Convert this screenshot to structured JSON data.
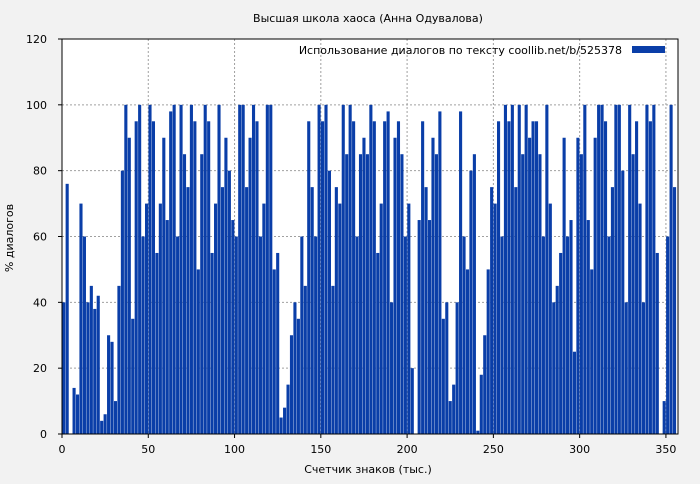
{
  "chart_data": {
    "type": "bar",
    "title": "Высшая школа хаоса (Анна Одувалова)",
    "xlabel": "Счетчик знаков (тыс.)",
    "ylabel": "% диалогов",
    "xlim": [
      0,
      357
    ],
    "ylim": [
      0,
      120
    ],
    "x_ticks": [
      "0",
      "50",
      "100",
      "150",
      "200",
      "250",
      "300",
      "350"
    ],
    "y_ticks": [
      "0",
      "20",
      "40",
      "60",
      "80",
      "100",
      "120"
    ],
    "grid": true,
    "legend_position": "top-right",
    "series": [
      {
        "name": "Использование диалогов по тексту  coollib.net/b/525378",
        "color": "#0a3ea8",
        "x": [
          1,
          3,
          5,
          7,
          9,
          11,
          13,
          15,
          17,
          19,
          21,
          23,
          25,
          27,
          29,
          31,
          33,
          35,
          37,
          39,
          41,
          43,
          45,
          47,
          49,
          51,
          53,
          55,
          57,
          59,
          61,
          63,
          65,
          67,
          69,
          71,
          73,
          75,
          77,
          79,
          81,
          83,
          85,
          87,
          89,
          91,
          93,
          95,
          97,
          99,
          101,
          103,
          105,
          107,
          109,
          111,
          113,
          115,
          117,
          119,
          121,
          123,
          125,
          127,
          129,
          131,
          133,
          135,
          137,
          139,
          141,
          143,
          145,
          147,
          149,
          151,
          153,
          155,
          157,
          159,
          161,
          163,
          165,
          167,
          169,
          171,
          173,
          175,
          177,
          179,
          181,
          183,
          185,
          187,
          189,
          191,
          193,
          195,
          197,
          199,
          201,
          203,
          205,
          207,
          209,
          211,
          213,
          215,
          217,
          219,
          221,
          223,
          225,
          227,
          229,
          231,
          233,
          235,
          237,
          239,
          241,
          243,
          245,
          247,
          249,
          251,
          253,
          255,
          257,
          259,
          261,
          263,
          265,
          267,
          269,
          271,
          273,
          275,
          277,
          279,
          281,
          283,
          285,
          287,
          289,
          291,
          293,
          295,
          297,
          299,
          301,
          303,
          305,
          307,
          309,
          311,
          313,
          315,
          317,
          319,
          321,
          323,
          325,
          327,
          329,
          331,
          333,
          335,
          337,
          339,
          341,
          343,
          345,
          347,
          349,
          351,
          353,
          355
        ],
        "values": [
          40,
          76,
          0,
          14,
          12,
          70,
          60,
          40,
          45,
          38,
          42,
          4,
          6,
          30,
          28,
          10,
          45,
          80,
          100,
          90,
          35,
          95,
          100,
          60,
          70,
          100,
          95,
          55,
          70,
          90,
          65,
          98,
          100,
          60,
          100,
          85,
          75,
          100,
          95,
          50,
          85,
          100,
          95,
          55,
          70,
          100,
          75,
          90,
          80,
          65,
          60,
          100,
          100,
          75,
          90,
          100,
          95,
          60,
          70,
          100,
          100,
          50,
          55,
          5,
          8,
          15,
          30,
          40,
          35,
          60,
          45,
          95,
          75,
          60,
          100,
          95,
          100,
          80,
          45,
          75,
          70,
          100,
          85,
          100,
          95,
          60,
          85,
          90,
          85,
          100,
          95,
          55,
          70,
          95,
          98,
          40,
          90,
          95,
          85,
          60,
          70,
          20,
          0,
          65,
          95,
          75,
          65,
          90,
          85,
          98,
          35,
          40,
          10,
          15,
          40,
          98,
          60,
          50,
          80,
          85,
          1,
          18,
          30,
          50,
          75,
          70,
          95,
          60,
          100,
          95,
          100,
          75,
          100,
          85,
          100,
          90,
          95,
          95,
          85,
          60,
          100,
          70,
          40,
          45,
          55,
          90,
          60,
          65,
          25,
          90,
          85,
          100,
          65,
          50,
          90,
          100,
          100,
          95,
          60,
          75,
          100,
          100,
          80,
          40,
          100,
          85,
          95,
          70,
          40,
          100,
          95,
          100,
          55,
          0,
          10,
          60,
          100,
          75
        ]
      }
    ]
  }
}
